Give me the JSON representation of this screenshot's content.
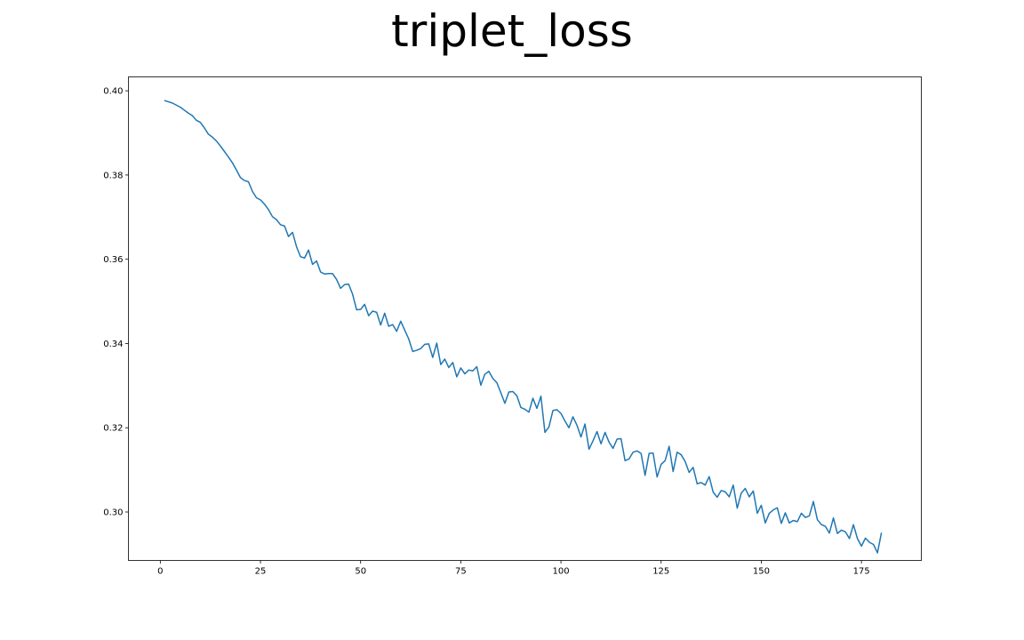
{
  "chart_data": {
    "type": "line",
    "title": "triplet_loss",
    "xlabel": "",
    "ylabel": "",
    "xlim": [
      -7.95,
      189.95
    ],
    "ylim": [
      0.2885,
      0.4033
    ],
    "x_ticks": [
      0,
      25,
      50,
      75,
      100,
      125,
      150,
      175
    ],
    "y_ticks": [
      0.3,
      0.32,
      0.34,
      0.36,
      0.38,
      0.4
    ],
    "x_tick_labels": [
      "0",
      "25",
      "50",
      "75",
      "100",
      "125",
      "150",
      "175"
    ],
    "y_tick_labels": [
      "0.30",
      "0.32",
      "0.34",
      "0.36",
      "0.38",
      "0.40"
    ],
    "grid": false,
    "line_color": "#1f77b4",
    "series": [
      {
        "x": [
          1,
          2,
          3,
          4,
          5,
          6,
          7,
          8,
          9,
          10,
          11,
          12,
          13,
          14,
          15,
          16,
          17,
          18,
          19,
          20,
          21,
          22,
          23,
          24,
          25,
          26,
          27,
          28,
          29,
          30,
          31,
          32,
          33,
          34,
          35,
          36,
          37,
          38,
          39,
          40,
          41,
          42,
          43,
          44,
          45,
          46,
          47,
          48,
          49,
          50,
          51,
          52,
          53,
          54,
          55,
          56,
          57,
          58,
          59,
          60,
          61,
          62,
          63,
          64,
          65,
          66,
          67,
          68,
          69,
          70,
          71,
          72,
          73,
          74,
          75,
          76,
          77,
          78,
          79,
          80,
          81,
          82,
          83,
          84,
          85,
          86,
          87,
          88,
          89,
          90,
          91,
          92,
          93,
          94,
          95,
          96,
          97,
          98,
          99,
          100,
          101,
          102,
          103,
          104,
          105,
          106,
          107,
          108,
          109,
          110,
          111,
          112,
          113,
          114,
          115,
          116,
          117,
          118,
          119,
          120,
          121,
          122,
          123,
          124,
          125,
          126,
          127,
          128,
          129,
          130,
          131,
          132,
          133,
          134,
          135,
          136,
          137,
          138,
          139,
          140,
          141,
          142,
          143,
          144,
          145,
          146,
          147,
          148,
          149,
          150,
          151,
          152,
          153,
          154,
          155,
          156,
          157,
          158,
          159,
          160,
          161,
          162,
          163,
          164,
          165,
          166,
          167,
          168,
          169,
          170,
          171,
          172,
          173,
          174,
          175,
          176,
          177,
          178,
          179,
          180
        ],
        "values": [
          0.3977,
          0.3974,
          0.3971,
          0.3966,
          0.3961,
          0.3954,
          0.3947,
          0.3941,
          0.393,
          0.3925,
          0.3912,
          0.3897,
          0.389,
          0.3881,
          0.3869,
          0.3856,
          0.3843,
          0.3829,
          0.3812,
          0.3794,
          0.3787,
          0.3784,
          0.3761,
          0.3746,
          0.3741,
          0.3731,
          0.3718,
          0.3701,
          0.3694,
          0.3682,
          0.3679,
          0.3654,
          0.3664,
          0.363,
          0.3606,
          0.3603,
          0.3622,
          0.3588,
          0.3596,
          0.357,
          0.3565,
          0.3566,
          0.3566,
          0.3552,
          0.3531,
          0.354,
          0.3541,
          0.3517,
          0.348,
          0.3481,
          0.3493,
          0.3466,
          0.3477,
          0.3474,
          0.3444,
          0.3472,
          0.3441,
          0.3445,
          0.3429,
          0.3453,
          0.3432,
          0.3411,
          0.3381,
          0.3384,
          0.3388,
          0.3398,
          0.3399,
          0.3367,
          0.3401,
          0.335,
          0.3363,
          0.3343,
          0.3355,
          0.3321,
          0.3342,
          0.3328,
          0.3337,
          0.3335,
          0.3345,
          0.3301,
          0.3327,
          0.3334,
          0.3317,
          0.3307,
          0.3283,
          0.3258,
          0.3285,
          0.3286,
          0.3276,
          0.3248,
          0.3244,
          0.3237,
          0.327,
          0.3246,
          0.3275,
          0.3189,
          0.3202,
          0.3241,
          0.3243,
          0.3234,
          0.3216,
          0.32,
          0.3226,
          0.3206,
          0.3178,
          0.3209,
          0.3149,
          0.3169,
          0.3191,
          0.3162,
          0.3189,
          0.3166,
          0.3151,
          0.3173,
          0.3174,
          0.3122,
          0.3126,
          0.3142,
          0.3145,
          0.3139,
          0.3087,
          0.3139,
          0.314,
          0.3083,
          0.3113,
          0.3122,
          0.3156,
          0.3096,
          0.3142,
          0.3136,
          0.312,
          0.3094,
          0.3106,
          0.3067,
          0.307,
          0.3064,
          0.3084,
          0.3047,
          0.3035,
          0.3051,
          0.3048,
          0.3036,
          0.3064,
          0.3009,
          0.3045,
          0.3056,
          0.3036,
          0.305,
          0.2997,
          0.3016,
          0.2974,
          0.2997,
          0.3005,
          0.301,
          0.2973,
          0.2998,
          0.2974,
          0.298,
          0.2977,
          0.2997,
          0.2987,
          0.2991,
          0.3025,
          0.2982,
          0.297,
          0.2966,
          0.295,
          0.2986,
          0.2949,
          0.2957,
          0.2953,
          0.2937,
          0.297,
          0.2937,
          0.2919,
          0.2938,
          0.2928,
          0.2923,
          0.2903,
          0.2951
        ]
      }
    ]
  }
}
